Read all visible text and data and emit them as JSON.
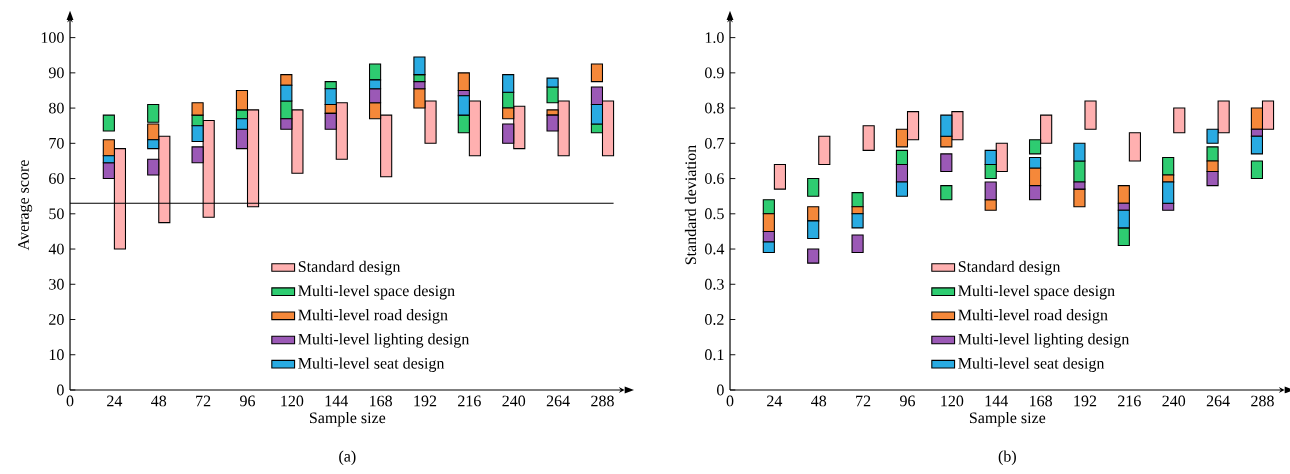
{
  "chart_data": [
    {
      "type": "bar",
      "title": "(a)",
      "xlabel": "Sample size",
      "ylabel": "Average score",
      "legend": "bottom",
      "x": [
        24,
        48,
        72,
        96,
        120,
        144,
        168,
        192,
        216,
        240,
        264,
        288
      ],
      "xlim": [
        0,
        300
      ],
      "xticks": [
        0,
        24,
        48,
        72,
        96,
        120,
        144,
        168,
        192,
        216,
        240,
        264,
        288
      ],
      "ylim": [
        0,
        105
      ],
      "yticks": [
        0,
        10,
        20,
        30,
        40,
        50,
        60,
        70,
        80,
        90,
        100
      ],
      "ref_lines": [
        {
          "axis": "y",
          "value": 53
        }
      ],
      "series": [
        {
          "name": "Standard design",
          "color": "#ffb0b0",
          "base": [
            40,
            47.5,
            49,
            52,
            61.5,
            65.5,
            60.5,
            70,
            66.5,
            68.5,
            66.5,
            66.5
          ],
          "values": [
            28.5,
            24.5,
            27.5,
            27.5,
            18,
            16,
            17.5,
            12,
            15.5,
            12,
            15.5,
            15.5
          ]
        },
        {
          "name": "Multi-level space design",
          "color": "#2ecc71",
          "base": [
            73.5,
            76,
            75,
            77,
            77,
            85.5,
            88,
            87.5,
            73,
            80,
            81.5,
            73
          ],
          "values": [
            4.5,
            5,
            3,
            2.5,
            5,
            2,
            4.5,
            2,
            5,
            4.5,
            4.5,
            2.5
          ]
        },
        {
          "name": "Multi-level road design",
          "color": "#f5883a",
          "base": [
            66.5,
            71,
            78,
            79.5,
            86.5,
            78.5,
            77,
            80,
            85,
            77,
            78,
            87.5
          ],
          "values": [
            4.5,
            4.5,
            3.5,
            5.5,
            3,
            2.5,
            4.5,
            5.5,
            5,
            3,
            1.5,
            5
          ]
        },
        {
          "name": "Multi-level lighting design",
          "color": "#9b59b6",
          "base": [
            60,
            61,
            64.5,
            68.5,
            74,
            74,
            81.5,
            85.5,
            83.5,
            70,
            73.5,
            81
          ],
          "values": [
            4.5,
            4.5,
            4.5,
            5.5,
            3,
            4.5,
            4,
            2,
            1.5,
            5.5,
            4.5,
            5
          ]
        },
        {
          "name": "Multi-level seat design",
          "color": "#29abe2",
          "base": [
            64.5,
            68.5,
            70.5,
            74,
            82,
            81,
            85.5,
            89.5,
            78,
            84.5,
            86,
            75.5
          ],
          "values": [
            2,
            2.5,
            4.5,
            3,
            4.5,
            4.5,
            2.5,
            5,
            5.5,
            5,
            2.5,
            5.5
          ]
        }
      ]
    },
    {
      "type": "bar",
      "title": "(b)",
      "xlabel": "Sample size",
      "ylabel": "Standard deviation",
      "legend": "bottom",
      "x": [
        24,
        48,
        72,
        96,
        120,
        144,
        168,
        192,
        216,
        240,
        264,
        288
      ],
      "xlim": [
        0,
        300
      ],
      "xticks": [
        0,
        24,
        48,
        72,
        96,
        120,
        144,
        168,
        192,
        216,
        240,
        264,
        288
      ],
      "ylim": [
        0,
        1.05
      ],
      "yticks": [
        0,
        0.1,
        0.2,
        0.3,
        0.4,
        0.5,
        0.6,
        0.7,
        0.8,
        0.9,
        {
          "value": 1,
          "label": "1.0"
        }
      ],
      "series": [
        {
          "name": "Standard design",
          "color": "#ffb0b0",
          "base": [
            0.57,
            0.64,
            0.68,
            0.71,
            0.71,
            0.62,
            0.7,
            0.74,
            0.65,
            0.73,
            0.73,
            0.74
          ],
          "values": [
            0.07,
            0.08,
            0.07,
            0.08,
            0.08,
            0.08,
            0.08,
            0.08,
            0.08,
            0.07,
            0.09,
            0.08
          ]
        },
        {
          "name": "Multi-level space design",
          "color": "#2ecc71",
          "base": [
            0.5,
            0.55,
            0.52,
            0.64,
            0.54,
            0.6,
            0.67,
            0.59,
            0.41,
            0.61,
            0.65,
            0.6
          ],
          "values": [
            0.04,
            0.05,
            0.04,
            0.04,
            0.04,
            0.04,
            0.04,
            0.06,
            0.05,
            0.05,
            0.04,
            0.05
          ]
        },
        {
          "name": "Multi-level road design",
          "color": "#f5883a",
          "base": [
            0.45,
            0.48,
            0.5,
            0.69,
            0.69,
            0.51,
            0.58,
            0.52,
            0.53,
            0.59,
            0.62,
            0.74
          ],
          "values": [
            0.05,
            0.04,
            0.02,
            0.05,
            0.03,
            0.03,
            0.05,
            0.05,
            0.05,
            0.02,
            0.03,
            0.06
          ]
        },
        {
          "name": "Multi-level lighting design",
          "color": "#9b59b6",
          "base": [
            0.42,
            0.36,
            0.39,
            0.59,
            0.62,
            0.54,
            0.54,
            0.57,
            0.51,
            0.51,
            0.58,
            0.72
          ],
          "values": [
            0.03,
            0.04,
            0.05,
            0.05,
            0.05,
            0.05,
            0.04,
            0.02,
            0.02,
            0.02,
            0.04,
            0.02
          ]
        },
        {
          "name": "Multi-level seat design",
          "color": "#29abe2",
          "base": [
            0.39,
            0.43,
            0.46,
            0.55,
            0.72,
            0.64,
            0.63,
            0.65,
            0.46,
            0.53,
            0.7,
            0.67
          ],
          "values": [
            0.03,
            0.05,
            0.04,
            0.04,
            0.06,
            0.04,
            0.03,
            0.05,
            0.05,
            0.06,
            0.04,
            0.05
          ]
        }
      ]
    }
  ]
}
